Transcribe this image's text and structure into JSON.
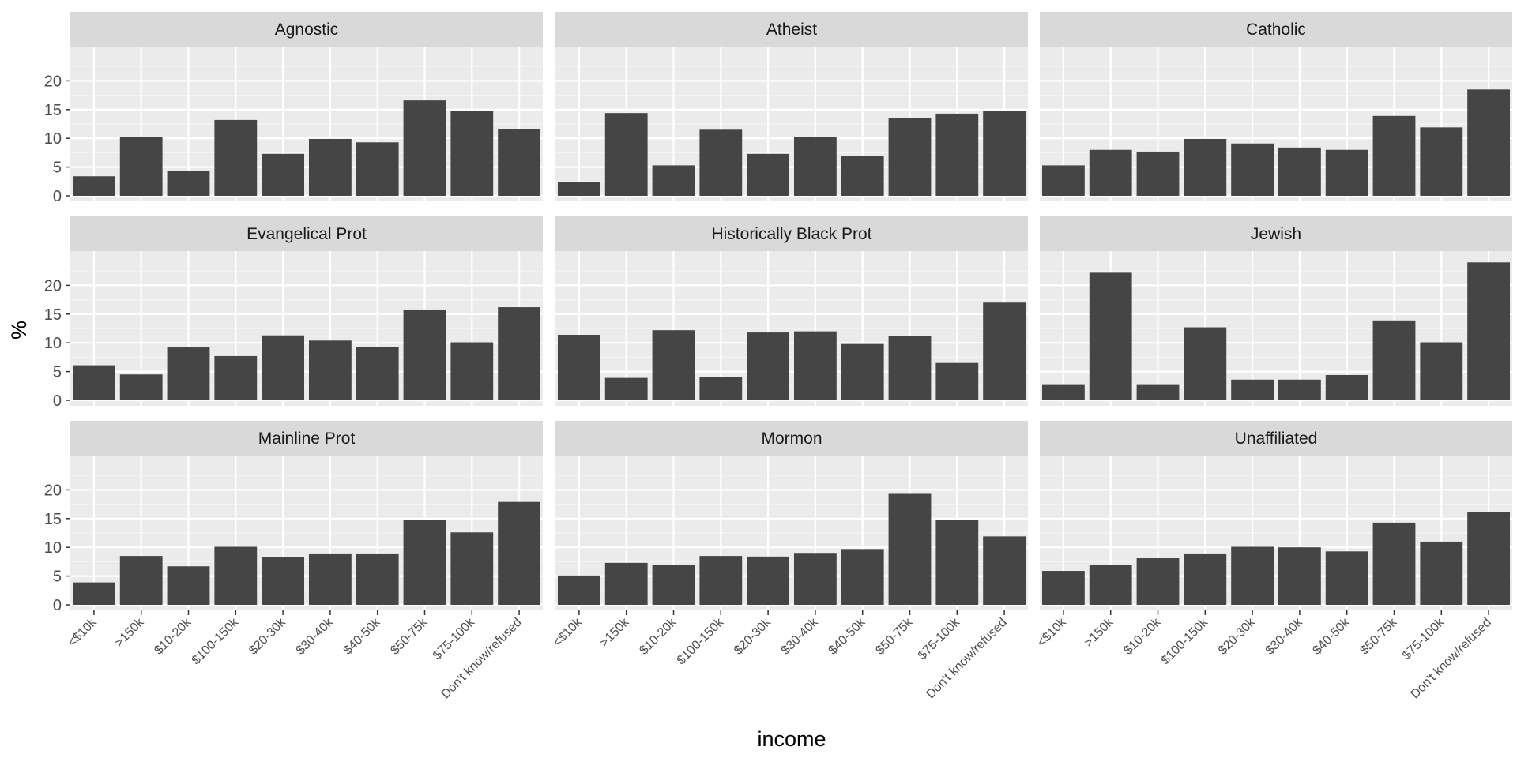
{
  "chart_data": {
    "type": "bar",
    "layout": "facet-grid-3x3",
    "xlabel": "income",
    "ylabel": "%",
    "ylim": [
      0,
      25
    ],
    "yticks": [
      0,
      5,
      10,
      15,
      20
    ],
    "categories": [
      "<$10k",
      ">150k",
      "$10-20k",
      "$100-150k",
      "$20-30k",
      "$30-40k",
      "$40-50k",
      "$50-75k",
      "$75-100k",
      "Don't know/refused"
    ],
    "bar_color": "#454545",
    "panel_bg": "#ebebeb",
    "strip_bg": "#d9d9d9",
    "panels": [
      {
        "name": "Agnostic",
        "values": [
          3.4,
          10.2,
          4.3,
          13.2,
          7.3,
          9.9,
          9.3,
          16.6,
          14.8,
          11.6
        ]
      },
      {
        "name": "Atheist",
        "values": [
          2.4,
          14.4,
          5.3,
          11.5,
          7.3,
          10.2,
          6.9,
          13.6,
          14.3,
          14.8
        ]
      },
      {
        "name": "Catholic",
        "values": [
          5.3,
          8.0,
          7.7,
          9.9,
          9.1,
          8.4,
          8.0,
          13.9,
          11.9,
          18.5
        ]
      },
      {
        "name": "Evangelical Prot",
        "values": [
          6.1,
          4.5,
          9.2,
          7.7,
          11.3,
          10.4,
          9.3,
          15.8,
          10.1,
          16.2
        ]
      },
      {
        "name": "Historically Black Prot",
        "values": [
          11.4,
          3.9,
          12.2,
          4.0,
          11.8,
          12.0,
          9.8,
          11.2,
          6.5,
          17.0
        ]
      },
      {
        "name": "Jewish",
        "values": [
          2.8,
          22.2,
          2.8,
          12.7,
          3.6,
          3.6,
          4.4,
          13.9,
          10.1,
          24.0
        ]
      },
      {
        "name": "Mainline Prot",
        "values": [
          3.9,
          8.5,
          6.7,
          10.1,
          8.3,
          8.8,
          8.8,
          14.8,
          12.6,
          17.9
        ]
      },
      {
        "name": "Mormon",
        "values": [
          5.1,
          7.3,
          7.0,
          8.5,
          8.4,
          8.9,
          9.7,
          19.3,
          14.7,
          11.9
        ]
      },
      {
        "name": "Unaffiliated",
        "values": [
          5.9,
          7.0,
          8.1,
          8.8,
          10.1,
          10.0,
          9.3,
          14.3,
          11.0,
          16.2
        ]
      }
    ]
  }
}
